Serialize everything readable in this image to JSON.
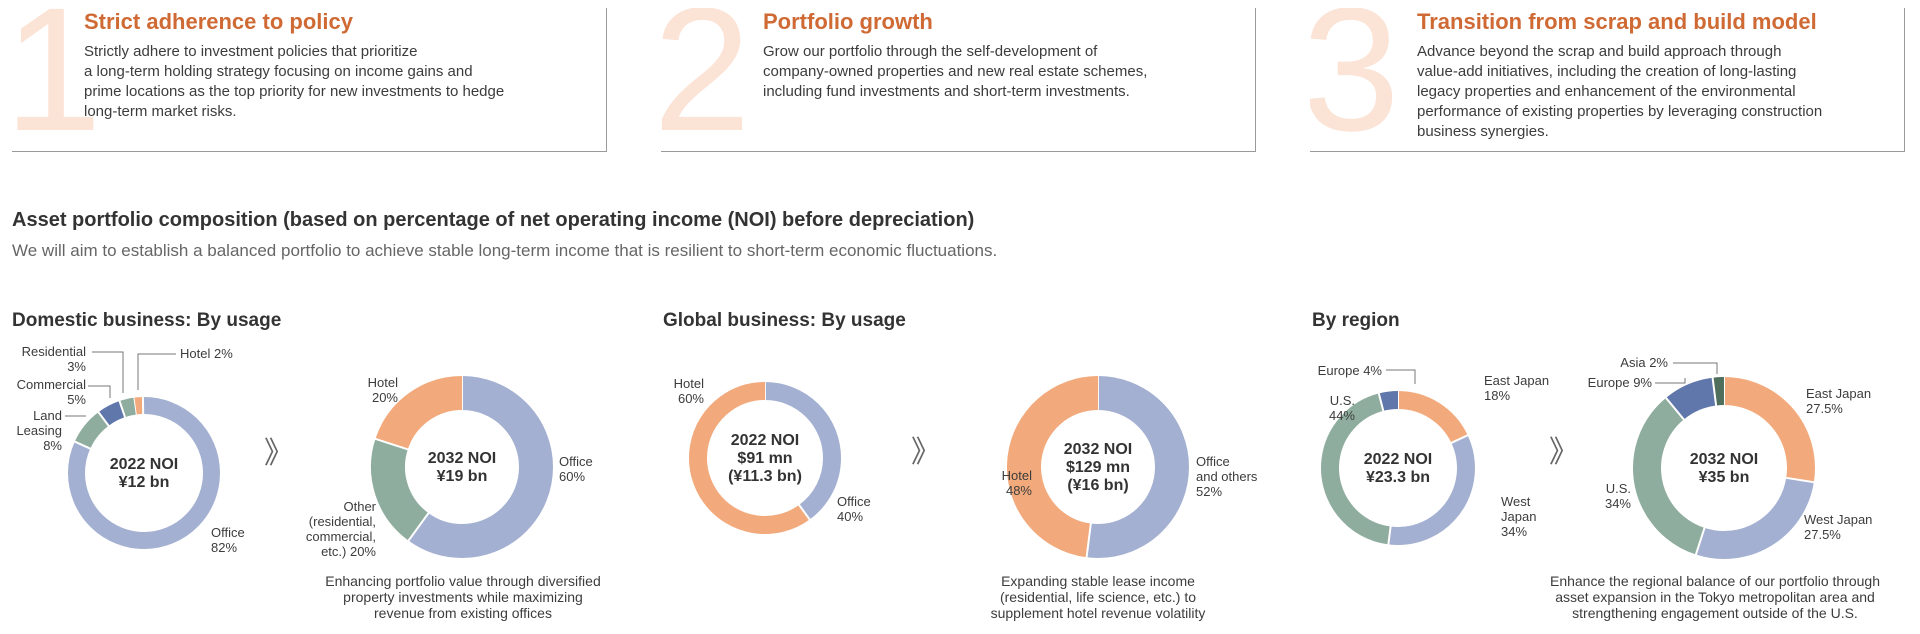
{
  "policies": [
    {
      "number": "1",
      "title": "Strict adherence to policy",
      "lines": [
        "Strictly adhere to investment policies that prioritize",
        "a long-term holding strategy focusing on income gains and",
        "prime locations as the top priority for new investments to hedge",
        "long-term market risks."
      ]
    },
    {
      "number": "2",
      "title": "Portfolio growth",
      "lines": [
        "Grow our portfolio through the self-development of",
        "company-owned properties and new real estate schemes,",
        "including fund investments and short-term investments."
      ]
    },
    {
      "number": "3",
      "title": "Transition from scrap and build model",
      "lines": [
        "Advance beyond the scrap and build approach through",
        "value-add initiatives, including the creation of long-lasting",
        "legacy properties and enhancement of the environmental",
        "performance of existing properties by leveraging construction",
        "business synergies."
      ]
    }
  ],
  "section": {
    "title": "Asset portfolio composition (based on percentage of net operating income (NOI) before depreciation)",
    "subtitle": "We will aim to establish a balanced portfolio to achieve stable long-term income that is resilient to short-term economic fluctuations."
  },
  "panels": [
    {
      "title": "Domestic business: By usage",
      "caption": [
        "Enhancing portfolio value through diversified",
        "property investments while maximizing",
        "revenue from existing offices"
      ]
    },
    {
      "title": "Global business: By usage",
      "caption": [
        "Expanding stable lease income",
        "(residential, life science, etc.) to",
        "supplement hotel revenue volatility"
      ]
    },
    {
      "title": "By region",
      "caption": [
        "Enhance the regional balance of our portfolio through",
        "asset expansion in the Tokyo metropolitan area and",
        "strengthening engagement outside of the U.S."
      ]
    }
  ],
  "arrow_glyph": "》",
  "colors": {
    "office": "#a3b0d1",
    "hotel": "#f2a97b",
    "green": "#8fad9e",
    "blue": "#5f77aa",
    "darkgreen": "#4f6e5c",
    "accent": "#cf6a35"
  },
  "chart_data": [
    {
      "type": "pie",
      "donut": true,
      "center": [
        "2022 NOI",
        "¥12 bn"
      ],
      "slices": [
        {
          "label": [
            "Hotel 2%"
          ],
          "value": 2,
          "color": "#f2a97b"
        },
        {
          "label": [
            "Office",
            "82%"
          ],
          "value": 82,
          "color": "#a3b0d1"
        },
        {
          "label": [
            "Land",
            "Leasing",
            "8%"
          ],
          "value": 8,
          "color": "#8fad9e"
        },
        {
          "label": [
            "Commercial",
            "5%"
          ],
          "value": 5,
          "color": "#5f77aa"
        },
        {
          "label": [
            "Residential",
            "3%"
          ],
          "value": 3,
          "color": "#8fad9e"
        }
      ]
    },
    {
      "type": "pie",
      "donut": true,
      "center": [
        "2032 NOI",
        "¥19 bn"
      ],
      "slices": [
        {
          "label": [
            "Office",
            "60%"
          ],
          "value": 60,
          "color": "#a3b0d1"
        },
        {
          "label": [
            "Other",
            "(residential,",
            "commercial,",
            "etc.) 20%"
          ],
          "value": 20,
          "color": "#8fad9e"
        },
        {
          "label": [
            "Hotel",
            "20%"
          ],
          "value": 20,
          "color": "#f2a97b"
        }
      ]
    },
    {
      "type": "pie",
      "donut": true,
      "center": [
        "2022 NOI",
        "$91 mn",
        "(¥11.3 bn)"
      ],
      "slices": [
        {
          "label": [
            "Office",
            "40%"
          ],
          "value": 40,
          "color": "#a3b0d1"
        },
        {
          "label": [
            "Hotel",
            "60%"
          ],
          "value": 60,
          "color": "#f2a97b"
        }
      ]
    },
    {
      "type": "pie",
      "donut": true,
      "center": [
        "2032 NOI",
        "$129 mn",
        "(¥16 bn)"
      ],
      "slices": [
        {
          "label": [
            "Office",
            "and others",
            "52%"
          ],
          "value": 52,
          "color": "#a3b0d1"
        },
        {
          "label": [
            "Hotel",
            "48%"
          ],
          "value": 48,
          "color": "#f2a97b"
        }
      ]
    },
    {
      "type": "pie",
      "donut": true,
      "center": [
        "2022 NOI",
        "¥23.3 bn"
      ],
      "slices": [
        {
          "label": [
            "East Japan",
            "18%"
          ],
          "value": 18,
          "color": "#f2a97b"
        },
        {
          "label": [
            "West",
            "Japan",
            "34%"
          ],
          "value": 34,
          "color": "#a3b0d1"
        },
        {
          "label": [
            "U.S.",
            "44%"
          ],
          "value": 44,
          "color": "#8fad9e"
        },
        {
          "label": [
            "Europe 4%"
          ],
          "value": 4,
          "color": "#5f77aa"
        }
      ]
    },
    {
      "type": "pie",
      "donut": true,
      "center": [
        "2032 NOI",
        "¥35 bn"
      ],
      "slices": [
        {
          "label": [
            "East Japan",
            "27.5%"
          ],
          "value": 27.5,
          "color": "#f2a97b"
        },
        {
          "label": [
            "West Japan",
            "27.5%"
          ],
          "value": 27.5,
          "color": "#a3b0d1"
        },
        {
          "label": [
            "U.S.",
            "34%"
          ],
          "value": 34,
          "color": "#8fad9e"
        },
        {
          "label": [
            "Europe 9%"
          ],
          "value": 9,
          "color": "#5f77aa"
        },
        {
          "label": [
            "Asia 2%"
          ],
          "value": 2,
          "color": "#4f6e5c"
        }
      ]
    }
  ]
}
